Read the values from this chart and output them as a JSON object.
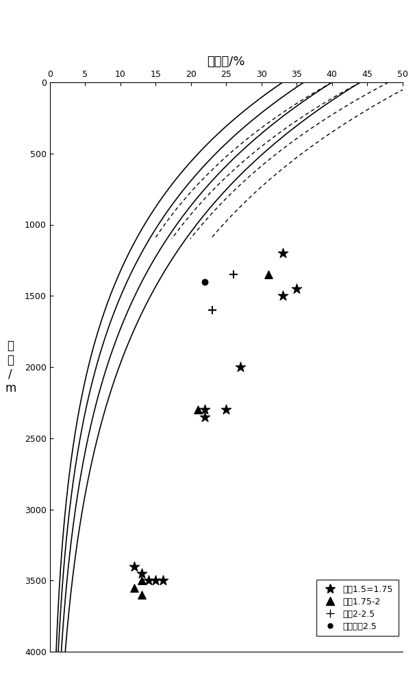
{
  "title_x": "孔隙度/%",
  "ylabel": "深\n度\n/\nm",
  "xlim": [
    0,
    50
  ],
  "ylim": [
    4000,
    0
  ],
  "xticks": [
    0,
    5,
    10,
    15,
    20,
    25,
    30,
    35,
    40,
    45,
    50
  ],
  "yticks": [
    0,
    500,
    1000,
    1500,
    2000,
    2500,
    3000,
    3500,
    4000
  ],
  "solid_curves": [
    {
      "phi0": 33,
      "k": 0.0009
    },
    {
      "phi0": 36,
      "k": 0.00085
    },
    {
      "phi0": 40,
      "k": 0.0008
    },
    {
      "phi0": 44,
      "k": 0.00075
    }
  ],
  "dashed_curves": [
    {
      "phi0": 40,
      "k": 0.0009
    },
    {
      "phi0": 44,
      "k": 0.00085
    },
    {
      "phi0": 48,
      "k": 0.0008
    },
    {
      "phi0": 52,
      "k": 0.00075
    }
  ],
  "dashed_depth_max": 1100,
  "scatter_data": [
    {
      "marker": "*",
      "size": 120,
      "color": "black",
      "points": [
        [
          33,
          1200
        ],
        [
          35,
          1450
        ],
        [
          33,
          1500
        ],
        [
          27,
          2000
        ],
        [
          22,
          2300
        ],
        [
          22,
          2350
        ],
        [
          25,
          2300
        ],
        [
          12,
          3400
        ],
        [
          13,
          3450
        ],
        [
          14,
          3500
        ],
        [
          15,
          3500
        ],
        [
          16,
          3500
        ]
      ]
    },
    {
      "marker": "^",
      "size": 70,
      "color": "black",
      "points": [
        [
          31,
          1350
        ],
        [
          21,
          2300
        ],
        [
          12,
          3550
        ],
        [
          13,
          3500
        ],
        [
          13,
          3600
        ]
      ]
    },
    {
      "marker": "+",
      "size": 80,
      "color": "black",
      "points": [
        [
          26,
          1350
        ],
        [
          23,
          1600
        ]
      ]
    },
    {
      "marker": "o",
      "size": 40,
      "color": "black",
      "points": [
        [
          22,
          1400
        ]
      ]
    }
  ],
  "legend_entries": [
    {
      "marker": "*",
      "label": "分选1.5=1.75"
    },
    {
      "marker": "^",
      "label": "分选1.75-2"
    },
    {
      "marker": "+",
      "label": "分选2-2.5"
    },
    {
      "marker": "o",
      "label": "分选大于2.5"
    }
  ]
}
